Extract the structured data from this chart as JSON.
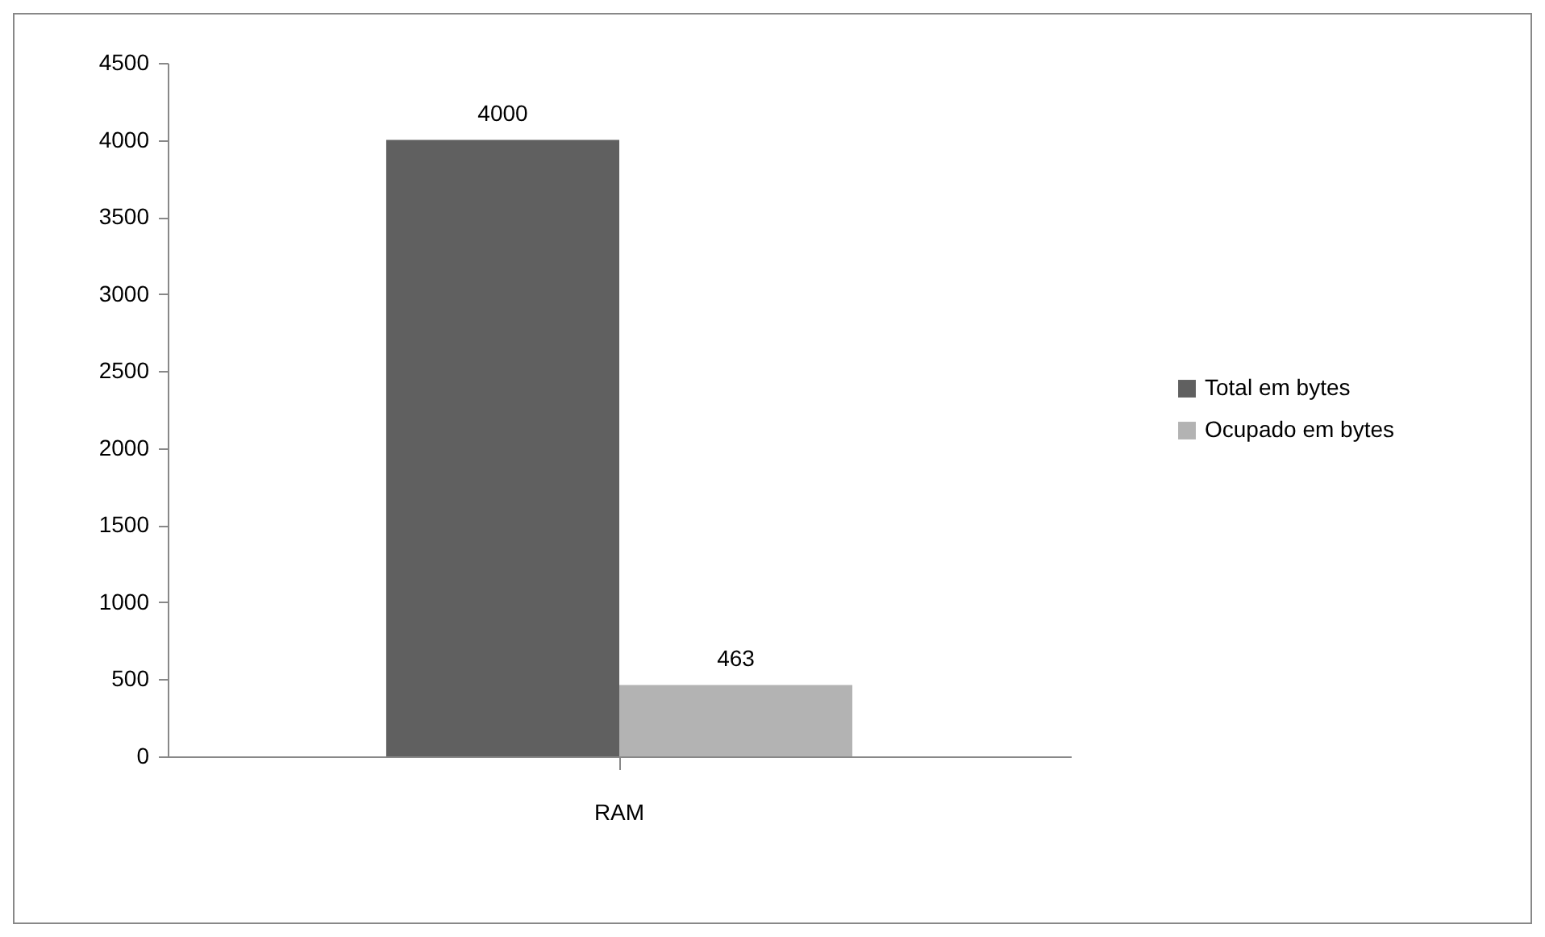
{
  "chart_data": {
    "type": "bar",
    "categories": [
      "RAM"
    ],
    "series": [
      {
        "name": "Total em bytes",
        "color": "#606060",
        "values": [
          4000
        ]
      },
      {
        "name": "Ocupado em bytes",
        "color": "#b3b3b3",
        "values": [
          463
        ]
      }
    ],
    "ylim": [
      0,
      4500
    ],
    "yticks": [
      0,
      500,
      1000,
      1500,
      2000,
      2500,
      3000,
      3500,
      4000,
      4500
    ],
    "grid": false,
    "legend": "right",
    "data_labels": true
  }
}
